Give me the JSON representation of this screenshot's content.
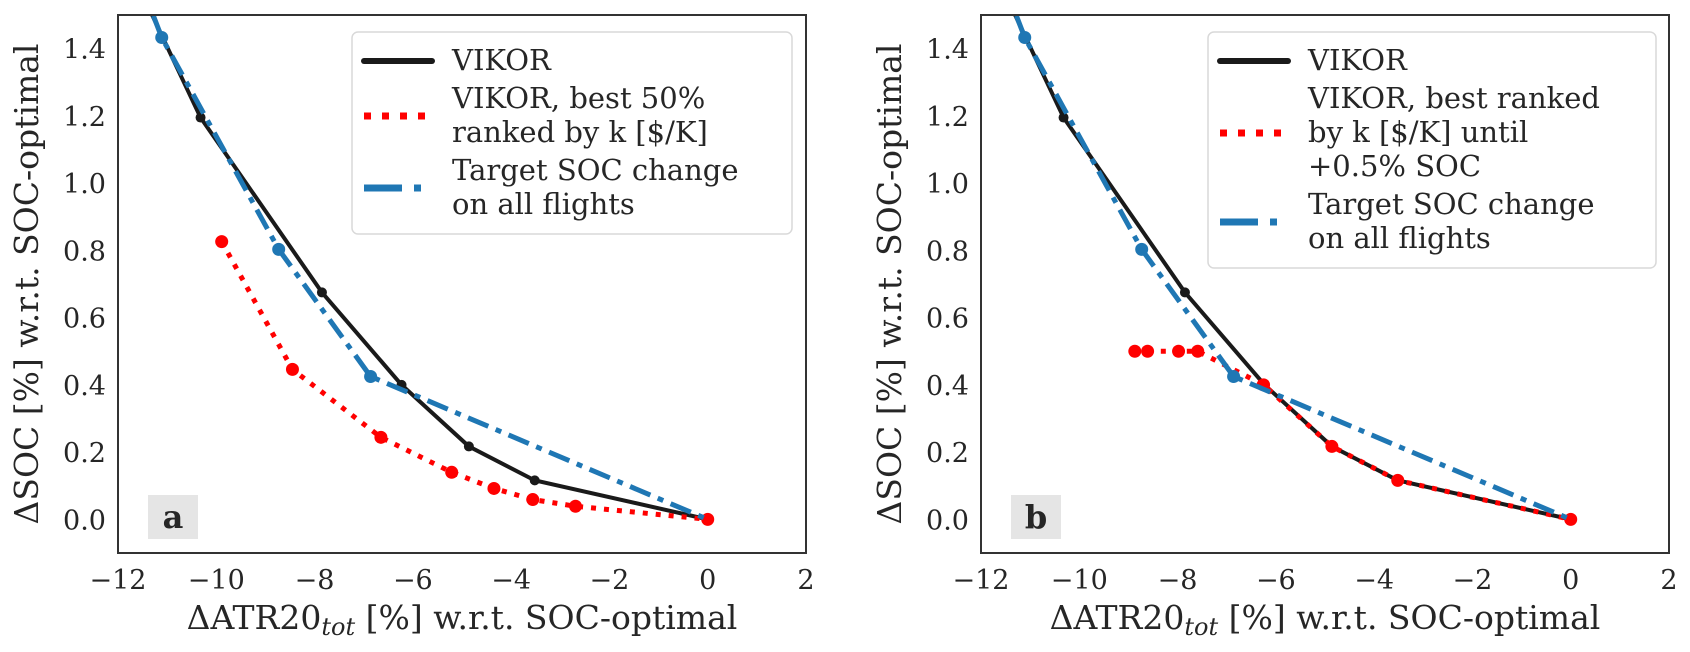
{
  "colors": {
    "vikor": "#1a1a1a",
    "vikor_best": "#ff0000",
    "target": "#1f77b4",
    "spine": "#333333",
    "legend_border": "#d9d9d9",
    "letter_bg": "#e5e5e5"
  },
  "chart_data": [
    {
      "type": "line",
      "panel_letter": "a",
      "xlabel_main": "ΔATR20",
      "xlabel_sub": "tot",
      "xlabel_rest": " [%] w.r.t. SOC-optimal",
      "ylabel": "ΔSOC [%] w.r.t. SOC-optimal",
      "xlim": [
        -12,
        2
      ],
      "ylim": [
        -0.1,
        1.5
      ],
      "xticks": [
        -12,
        -10,
        -8,
        -6,
        -4,
        -2,
        0,
        2
      ],
      "xtick_labels": [
        "−12",
        "−10",
        "−8",
        "−6",
        "−4",
        "−2",
        "0",
        "2"
      ],
      "yticks": [
        0.0,
        0.2,
        0.4,
        0.6,
        0.8,
        1.0,
        1.2,
        1.4
      ],
      "ytick_labels": [
        "0.0",
        "0.2",
        "0.4",
        "0.6",
        "0.8",
        "1.0",
        "1.2",
        "1.4"
      ],
      "grid": false,
      "legend_position": "top-right",
      "series": [
        {
          "name": "VIKOR",
          "legend_lines": [
            "VIKOR"
          ],
          "style": "solid",
          "color_key": "vikor",
          "x": [
            -11.5,
            -10.32,
            -7.85,
            -6.23,
            -4.86,
            -3.52,
            0.0
          ],
          "y": [
            1.56,
            1.195,
            0.675,
            0.4,
            0.217,
            0.116,
            0.0
          ],
          "markers": [
            false,
            true,
            true,
            true,
            true,
            true,
            true
          ]
        },
        {
          "name": "VIKOR, best 50% ranked by k [$/K]",
          "legend_lines": [
            "VIKOR, best 50%",
            " ranked by k [$/K]"
          ],
          "style": "dotted",
          "color_key": "vikor_best",
          "x": [
            -9.89,
            -8.45,
            -6.65,
            -5.21,
            -4.35,
            -3.56,
            -2.69,
            0.0
          ],
          "y": [
            0.826,
            0.446,
            0.244,
            0.14,
            0.092,
            0.059,
            0.039,
            0.0
          ],
          "markers": [
            true,
            true,
            true,
            true,
            true,
            true,
            true,
            true
          ]
        },
        {
          "name": "Target SOC change on all flights",
          "legend_lines": [
            "Target SOC change",
            " on all flights"
          ],
          "style": "dashdot",
          "color_key": "target",
          "x": [
            -11.6,
            -11.11,
            -8.73,
            -6.86,
            0.0
          ],
          "y": [
            1.62,
            1.433,
            0.803,
            0.425,
            0.0
          ],
          "markers": [
            false,
            true,
            true,
            true,
            false
          ]
        }
      ]
    },
    {
      "type": "line",
      "panel_letter": "b",
      "xlabel_main": "ΔATR20",
      "xlabel_sub": "tot",
      "xlabel_rest": " [%] w.r.t. SOC-optimal",
      "ylabel": "ΔSOC [%] w.r.t. SOC-optimal",
      "xlim": [
        -12,
        2
      ],
      "ylim": [
        -0.1,
        1.5
      ],
      "xticks": [
        -12,
        -10,
        -8,
        -6,
        -4,
        -2,
        0,
        2
      ],
      "xtick_labels": [
        "−12",
        "−10",
        "−8",
        "−6",
        "−4",
        "−2",
        "0",
        "2"
      ],
      "yticks": [
        0.0,
        0.2,
        0.4,
        0.6,
        0.8,
        1.0,
        1.2,
        1.4
      ],
      "ytick_labels": [
        "0.0",
        "0.2",
        "0.4",
        "0.6",
        "0.8",
        "1.0",
        "1.2",
        "1.4"
      ],
      "grid": false,
      "legend_position": "top-right",
      "series": [
        {
          "name": "VIKOR",
          "legend_lines": [
            "VIKOR"
          ],
          "style": "solid",
          "color_key": "vikor",
          "x": [
            -11.5,
            -10.32,
            -7.85,
            -6.23,
            -4.86,
            -3.52,
            0.0
          ],
          "y": [
            1.56,
            1.195,
            0.675,
            0.4,
            0.217,
            0.116,
            0.0
          ],
          "markers": [
            false,
            true,
            true,
            true,
            true,
            true,
            true
          ]
        },
        {
          "name": "VIKOR, best ranked by k [$/K] until +0.5% SOC",
          "legend_lines": [
            "VIKOR, best ranked",
            " by k [$/K] until",
            " +0.5% SOC"
          ],
          "style": "dotted",
          "color_key": "vikor_best",
          "x": [
            -8.87,
            -8.61,
            -7.98,
            -7.59,
            -6.25,
            -4.86,
            -3.52,
            0.0
          ],
          "y": [
            0.5,
            0.5,
            0.5,
            0.5,
            0.4,
            0.217,
            0.116,
            0.0
          ],
          "markers": [
            true,
            true,
            true,
            true,
            true,
            true,
            true,
            true
          ]
        },
        {
          "name": "Target SOC change on all flights",
          "legend_lines": [
            "Target SOC change",
            " on all flights"
          ],
          "style": "dashdot",
          "color_key": "target",
          "x": [
            -11.6,
            -11.11,
            -8.73,
            -6.86,
            0.0
          ],
          "y": [
            1.62,
            1.433,
            0.803,
            0.425,
            0.0
          ],
          "markers": [
            false,
            true,
            true,
            true,
            false
          ]
        }
      ]
    }
  ]
}
